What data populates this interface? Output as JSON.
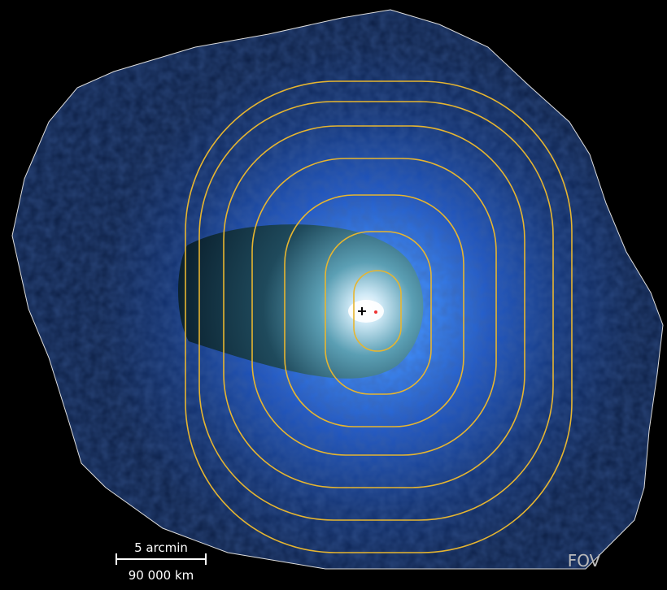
{
  "scale_bar": {
    "angular": "5 arcmin",
    "distance": "90 000 km"
  },
  "label": "FOV"
}
